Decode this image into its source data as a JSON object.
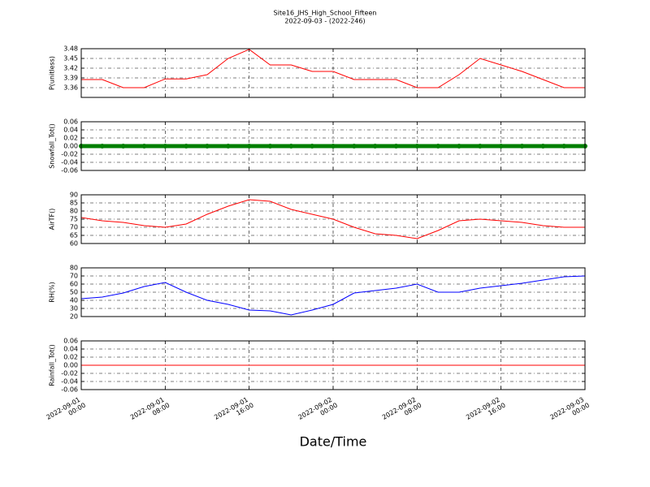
{
  "chart_data": [
    {
      "type": "line",
      "title": "Site16_JHS_High_School_Fifteen",
      "subtitle": "2022-09-03 - (2022-246)",
      "ylabel": "P(unitless)",
      "series": [
        {
          "name": "P",
          "color": "#ff0000",
          "values": [
            3.385,
            3.385,
            3.36,
            3.36,
            3.387,
            3.387,
            3.4,
            3.45,
            3.478,
            3.43,
            3.43,
            3.41,
            3.41,
            3.385,
            3.385,
            3.385,
            3.36,
            3.36,
            3.4,
            3.45,
            3.43,
            3.41,
            3.385,
            3.36,
            3.36
          ]
        }
      ],
      "x": [
        "2022-09-01 00:00",
        "2022-09-01 02:00",
        "2022-09-01 04:00",
        "2022-09-01 06:00",
        "2022-09-01 08:00",
        "2022-09-01 10:00",
        "2022-09-01 12:00",
        "2022-09-01 14:00",
        "2022-09-01 16:00",
        "2022-09-01 18:00",
        "2022-09-01 20:00",
        "2022-09-01 22:00",
        "2022-09-02 00:00",
        "2022-09-02 02:00",
        "2022-09-02 04:00",
        "2022-09-02 06:00",
        "2022-09-02 08:00",
        "2022-09-02 10:00",
        "2022-09-02 12:00",
        "2022-09-02 14:00",
        "2022-09-02 16:00",
        "2022-09-02 18:00",
        "2022-09-02 20:00",
        "2022-09-02 22:00",
        "2022-09-03 00:00"
      ],
      "xlim": [
        "2022-09-01 00:00",
        "2022-09-03 00:00"
      ],
      "xticks": [
        "2022-09-01 00:00",
        "2022-09-01 08:00",
        "2022-09-01 16:00",
        "2022-09-02 00:00",
        "2022-09-02 08:00",
        "2022-09-02 16:00",
        "2022-09-03 00:00"
      ],
      "ylim": [
        3.33,
        3.48
      ],
      "yticks": [
        3.36,
        3.39,
        3.42,
        3.45,
        3.48
      ],
      "grid": true
    },
    {
      "type": "scatter",
      "ylabel": "Snowfall_Tot()",
      "series": [
        {
          "name": "Snowfall_Tot",
          "color": "#007f00",
          "values": [
            0,
            0,
            0,
            0,
            0,
            0,
            0,
            0,
            0,
            0,
            0,
            0,
            0,
            0,
            0,
            0,
            0,
            0,
            0,
            0,
            0,
            0,
            0,
            0,
            0
          ]
        }
      ],
      "x": [
        "2022-09-01 00:00",
        "2022-09-01 02:00",
        "2022-09-01 04:00",
        "2022-09-01 06:00",
        "2022-09-01 08:00",
        "2022-09-01 10:00",
        "2022-09-01 12:00",
        "2022-09-01 14:00",
        "2022-09-01 16:00",
        "2022-09-01 18:00",
        "2022-09-01 20:00",
        "2022-09-01 22:00",
        "2022-09-02 00:00",
        "2022-09-02 02:00",
        "2022-09-02 04:00",
        "2022-09-02 06:00",
        "2022-09-02 08:00",
        "2022-09-02 10:00",
        "2022-09-02 12:00",
        "2022-09-02 14:00",
        "2022-09-02 16:00",
        "2022-09-02 18:00",
        "2022-09-02 20:00",
        "2022-09-02 22:00",
        "2022-09-03 00:00"
      ],
      "xlim": [
        "2022-09-01 00:00",
        "2022-09-03 00:00"
      ],
      "xticks": [
        "2022-09-01 00:00",
        "2022-09-01 08:00",
        "2022-09-01 16:00",
        "2022-09-02 00:00",
        "2022-09-02 08:00",
        "2022-09-02 16:00",
        "2022-09-03 00:00"
      ],
      "ylim": [
        -0.06,
        0.06
      ],
      "yticks": [
        -0.06,
        -0.04,
        -0.02,
        {
          "value": 0,
          "label": "0.00"
        },
        0.02,
        0.04,
        0.06
      ],
      "grid": true
    },
    {
      "type": "line",
      "ylabel": "AirTF()",
      "series": [
        {
          "name": "AirTF",
          "color": "#ff0000",
          "values": [
            76,
            74,
            73,
            71,
            70,
            72,
            78,
            83,
            87,
            86,
            81,
            78,
            75,
            70,
            66,
            65,
            63,
            68,
            74,
            75,
            74,
            73,
            71,
            70,
            70
          ]
        }
      ],
      "x": [
        "2022-09-01 00:00",
        "2022-09-01 02:00",
        "2022-09-01 04:00",
        "2022-09-01 06:00",
        "2022-09-01 08:00",
        "2022-09-01 10:00",
        "2022-09-01 12:00",
        "2022-09-01 14:00",
        "2022-09-01 16:00",
        "2022-09-01 18:00",
        "2022-09-01 20:00",
        "2022-09-01 22:00",
        "2022-09-02 00:00",
        "2022-09-02 02:00",
        "2022-09-02 04:00",
        "2022-09-02 06:00",
        "2022-09-02 08:00",
        "2022-09-02 10:00",
        "2022-09-02 12:00",
        "2022-09-02 14:00",
        "2022-09-02 16:00",
        "2022-09-02 18:00",
        "2022-09-02 20:00",
        "2022-09-02 22:00",
        "2022-09-03 00:00"
      ],
      "xlim": [
        "2022-09-01 00:00",
        "2022-09-03 00:00"
      ],
      "xticks": [
        "2022-09-01 00:00",
        "2022-09-01 08:00",
        "2022-09-01 16:00",
        "2022-09-02 00:00",
        "2022-09-02 08:00",
        "2022-09-02 16:00",
        "2022-09-03 00:00"
      ],
      "ylim": [
        60,
        90
      ],
      "yticks": [
        60,
        65,
        70,
        75,
        80,
        85,
        90
      ],
      "grid": true
    },
    {
      "type": "line",
      "ylabel": "RH(%)",
      "series": [
        {
          "name": "RH",
          "color": "#0000ff",
          "values": [
            42,
            44,
            49,
            57,
            62,
            50,
            40,
            35,
            28,
            27,
            22,
            28,
            35,
            49,
            52,
            55,
            60,
            50,
            50,
            55,
            58,
            61,
            65,
            69,
            70
          ]
        }
      ],
      "x": [
        "2022-09-01 00:00",
        "2022-09-01 02:00",
        "2022-09-01 04:00",
        "2022-09-01 06:00",
        "2022-09-01 08:00",
        "2022-09-01 10:00",
        "2022-09-01 12:00",
        "2022-09-01 14:00",
        "2022-09-01 16:00",
        "2022-09-01 18:00",
        "2022-09-01 20:00",
        "2022-09-01 22:00",
        "2022-09-02 00:00",
        "2022-09-02 02:00",
        "2022-09-02 04:00",
        "2022-09-02 06:00",
        "2022-09-02 08:00",
        "2022-09-02 10:00",
        "2022-09-02 12:00",
        "2022-09-02 14:00",
        "2022-09-02 16:00",
        "2022-09-02 18:00",
        "2022-09-02 20:00",
        "2022-09-02 22:00",
        "2022-09-03 00:00"
      ],
      "xlim": [
        "2022-09-01 00:00",
        "2022-09-03 00:00"
      ],
      "xticks": [
        "2022-09-01 00:00",
        "2022-09-01 08:00",
        "2022-09-01 16:00",
        "2022-09-02 00:00",
        "2022-09-02 08:00",
        "2022-09-02 16:00",
        "2022-09-03 00:00"
      ],
      "ylim": [
        20,
        80
      ],
      "yticks": [
        20,
        30,
        40,
        50,
        60,
        70,
        80
      ],
      "grid": true
    },
    {
      "type": "line",
      "ylabel": "Rainfall_Tot()",
      "xlabel": "Date/Time",
      "series": [
        {
          "name": "Rainfall_Tot",
          "color": "#ff0000",
          "values": [
            0,
            0,
            0,
            0,
            0,
            0,
            0,
            0,
            0,
            0,
            0,
            0,
            0,
            0,
            0,
            0,
            0,
            0,
            0,
            0,
            0,
            0,
            0,
            0,
            0
          ]
        }
      ],
      "x": [
        "2022-09-01 00:00",
        "2022-09-01 02:00",
        "2022-09-01 04:00",
        "2022-09-01 06:00",
        "2022-09-01 08:00",
        "2022-09-01 10:00",
        "2022-09-01 12:00",
        "2022-09-01 14:00",
        "2022-09-01 16:00",
        "2022-09-01 18:00",
        "2022-09-01 20:00",
        "2022-09-01 22:00",
        "2022-09-02 00:00",
        "2022-09-02 02:00",
        "2022-09-02 04:00",
        "2022-09-02 06:00",
        "2022-09-02 08:00",
        "2022-09-02 10:00",
        "2022-09-02 12:00",
        "2022-09-02 14:00",
        "2022-09-02 16:00",
        "2022-09-02 18:00",
        "2022-09-02 20:00",
        "2022-09-02 22:00",
        "2022-09-03 00:00"
      ],
      "xlim": [
        "2022-09-01 00:00",
        "2022-09-03 00:00"
      ],
      "xticks": [
        "2022-09-01 00:00",
        "2022-09-01 08:00",
        "2022-09-01 16:00",
        "2022-09-02 00:00",
        "2022-09-02 08:00",
        "2022-09-02 16:00",
        "2022-09-03 00:00"
      ],
      "ylim": [
        -0.06,
        0.06
      ],
      "yticks": [
        -0.06,
        -0.04,
        -0.02,
        {
          "value": 0,
          "label": "0.00"
        },
        0.02,
        0.04,
        0.06
      ],
      "grid": true
    }
  ]
}
